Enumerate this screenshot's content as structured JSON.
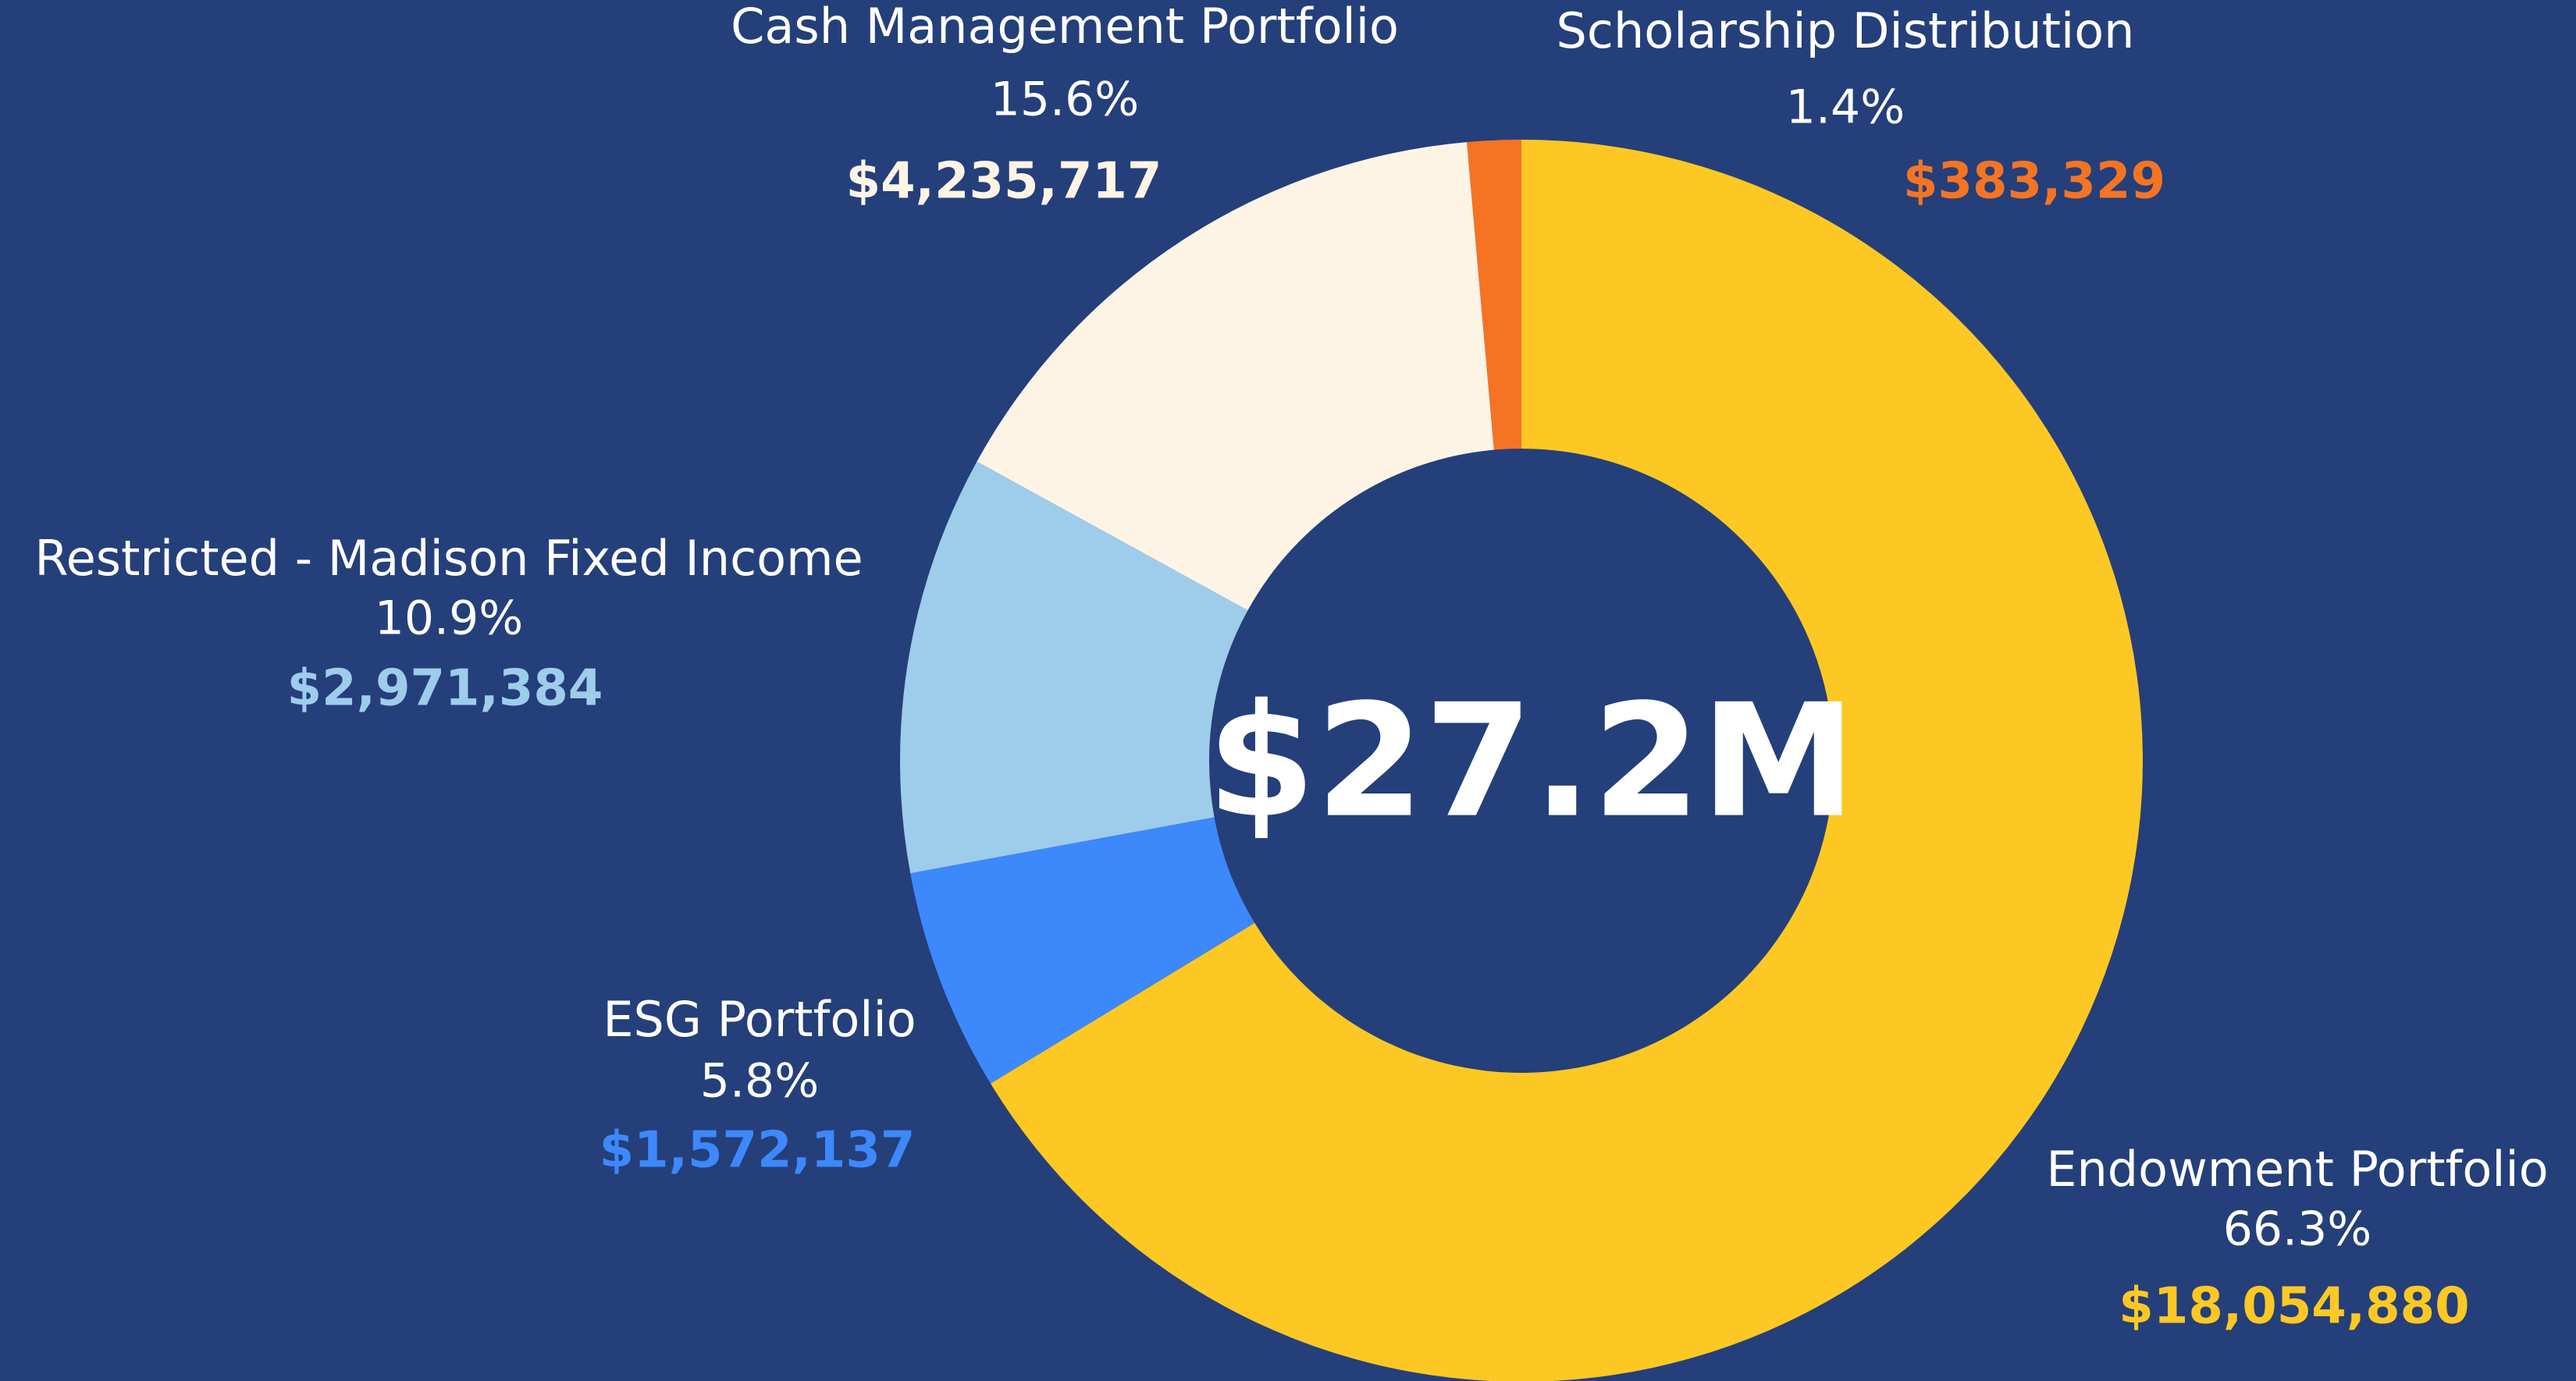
{
  "chart_data": {
    "type": "donut",
    "center_label": "$27.2M",
    "categories": [
      "Endowment Portfolio",
      "ESG Portfolio",
      "Restricted - Madison Fixed Income",
      "Cash Management Portfolio",
      "Scholarship Distribution"
    ],
    "values": [
      66.3,
      5.8,
      10.9,
      15.6,
      1.4
    ],
    "value_labels": [
      "66.3%",
      "5.8%",
      "10.9%",
      "15.6%",
      "1.4%"
    ],
    "amounts": [
      18054880,
      1572137,
      2971384,
      4235717,
      383329
    ],
    "amount_labels": [
      "$18,054,880",
      "$1,572,137",
      "$2,971,384",
      "$4,235,717",
      "$383,329"
    ],
    "colors": [
      "#FDC823",
      "#3D88FB",
      "#9ECCEB",
      "#FDF4E6",
      "#F47424"
    ]
  }
}
